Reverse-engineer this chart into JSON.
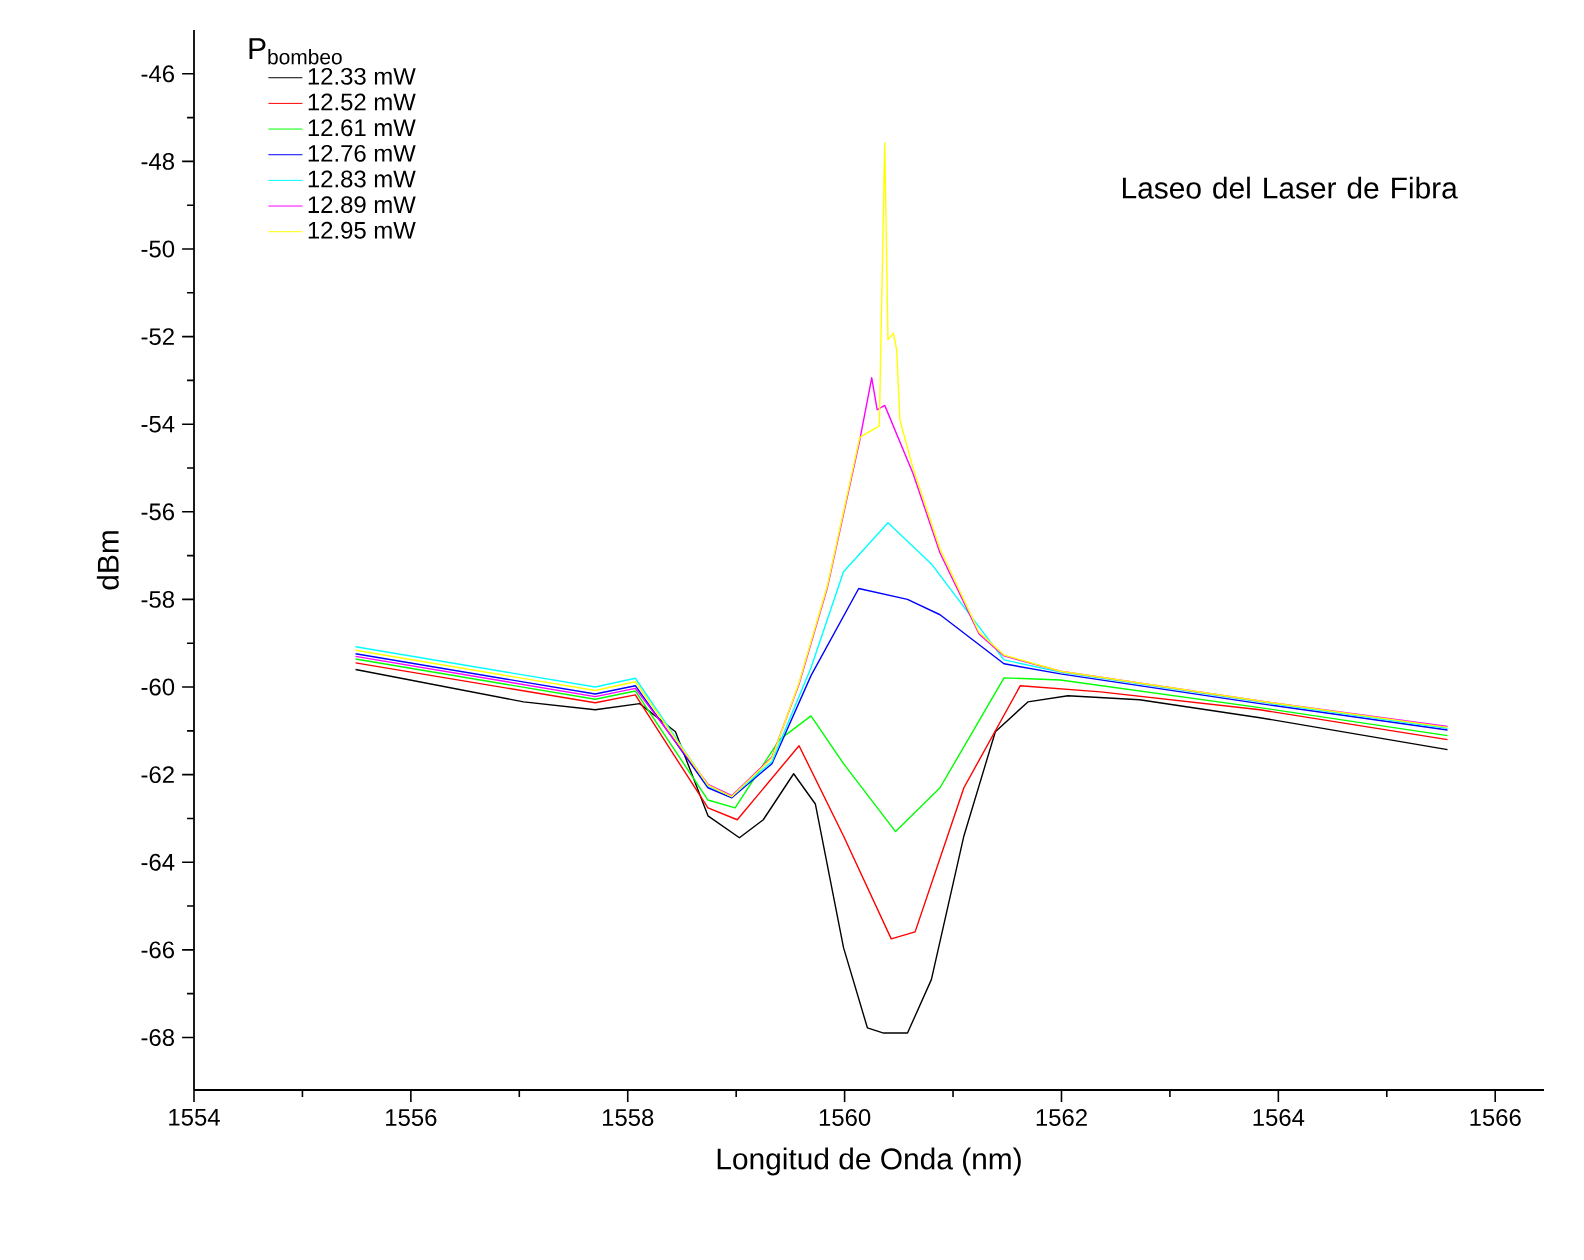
{
  "chart_data": {
    "type": "line",
    "title": "Laseo del Laser de Fibra",
    "xlabel": "Longitud de Onda (nm)",
    "ylabel": "dBm",
    "legend_title": "P$_{bombeo}$",
    "legend": "top left",
    "marker": "none",
    "line_style": "solid",
    "grid": false,
    "xlim": [
      1554,
      1566.45
    ],
    "xticks": [
      1554,
      1556,
      1558,
      1560,
      1562,
      1564,
      1566
    ],
    "ylim": [
      -69.2,
      -45
    ],
    "yticks": [
      -68,
      -66,
      -64,
      -62,
      -60,
      -58,
      -56,
      -54,
      -52,
      -50,
      -48,
      -46
    ],
    "series": [
      {
        "name": "12.33 mW",
        "color": "#000000",
        "x": [
          1555.49,
          1557.04,
          1557.7,
          1558.11,
          1558.44,
          1558.74,
          1559.03,
          1559.25,
          1559.53,
          1559.73,
          1559.99,
          1560.21,
          1560.36,
          1560.58,
          1560.8,
          1561.1,
          1561.39,
          1561.69,
          1562.06,
          1562.72,
          1563.83,
          1565.56
        ],
        "values": [
          -59.6,
          -60.34,
          -60.52,
          -60.38,
          -61.02,
          -62.94,
          -63.44,
          -63.03,
          -61.98,
          -62.67,
          -65.95,
          -67.78,
          -67.9,
          -67.9,
          -66.68,
          -63.4,
          -61.02,
          -60.34,
          -60.2,
          -60.29,
          -60.7,
          -61.43
        ]
      },
      {
        "name": "12.52 mW",
        "color": "#ff0000",
        "x": [
          1555.49,
          1557.7,
          1558.07,
          1558.74,
          1559.01,
          1559.58,
          1559.99,
          1560.43,
          1560.65,
          1561.1,
          1561.62,
          1562.36,
          1563.83,
          1565.56
        ],
        "values": [
          -59.45,
          -60.36,
          -60.18,
          -62.76,
          -63.03,
          -61.34,
          -63.4,
          -65.75,
          -65.59,
          -62.3,
          -59.97,
          -60.11,
          -60.52,
          -61.2
        ]
      },
      {
        "name": "12.61 mW",
        "color": "#00ff00",
        "x": [
          1555.49,
          1557.7,
          1558.07,
          1558.74,
          1558.99,
          1559.4,
          1559.69,
          1559.99,
          1560.47,
          1560.88,
          1561.47,
          1561.99,
          1563.83,
          1565.56
        ],
        "values": [
          -59.36,
          -60.28,
          -60.09,
          -62.58,
          -62.76,
          -61.2,
          -60.66,
          -61.75,
          -63.3,
          -62.3,
          -59.79,
          -59.84,
          -60.47,
          -61.11
        ]
      },
      {
        "name": "12.76 mW",
        "color": "#0000ff",
        "x": [
          1555.49,
          1557.7,
          1558.07,
          1558.74,
          1558.96,
          1559.33,
          1559.69,
          1560.13,
          1560.58,
          1560.88,
          1561.47,
          1561.99,
          1563.83,
          1565.56
        ],
        "values": [
          -59.24,
          -60.16,
          -59.97,
          -62.3,
          -62.53,
          -61.75,
          -59.74,
          -57.75,
          -58.0,
          -58.35,
          -59.47,
          -59.7,
          -60.38,
          -60.98
        ]
      },
      {
        "name": "12.83 mW",
        "color": "#00ffff",
        "x": [
          1555.49,
          1557.7,
          1558.07,
          1558.74,
          1558.96,
          1559.33,
          1559.69,
          1559.99,
          1560.4,
          1560.8,
          1561.47,
          1561.99,
          1563.83,
          1565.56
        ],
        "values": [
          -59.08,
          -60.0,
          -59.8,
          -62.25,
          -62.5,
          -61.7,
          -59.56,
          -57.37,
          -56.25,
          -57.19,
          -59.38,
          -59.66,
          -60.34,
          -60.94
        ]
      },
      {
        "name": "12.89 mW",
        "color": "#ff00ff",
        "x": [
          1555.49,
          1557.7,
          1558.07,
          1558.74,
          1558.96,
          1559.33,
          1559.58,
          1559.84,
          1560.14,
          1560.25,
          1560.3,
          1560.37,
          1560.63,
          1560.88,
          1561.24,
          1561.47,
          1561.99,
          1563.83,
          1565.56
        ],
        "values": [
          -59.3,
          -60.22,
          -60.03,
          -62.22,
          -62.48,
          -61.6,
          -59.93,
          -57.74,
          -54.36,
          -52.94,
          -53.67,
          -53.57,
          -55.12,
          -56.94,
          -58.79,
          -59.29,
          -59.64,
          -60.32,
          -60.9
        ]
      },
      {
        "name": "12.95 mW",
        "color": "#ffff00",
        "x": [
          1555.49,
          1557.7,
          1558.07,
          1558.74,
          1558.96,
          1559.33,
          1559.58,
          1559.84,
          1560.14,
          1560.32,
          1560.37,
          1560.4,
          1560.45,
          1560.48,
          1560.51,
          1560.63,
          1560.88,
          1561.24,
          1561.47,
          1561.99,
          1563.83,
          1565.56
        ],
        "values": [
          -59.16,
          -60.08,
          -59.88,
          -62.24,
          -62.5,
          -61.62,
          -59.9,
          -57.7,
          -54.3,
          -54.04,
          -47.58,
          -52.07,
          -51.92,
          -52.3,
          -53.9,
          -55.0,
          -56.85,
          -58.75,
          -59.27,
          -59.64,
          -60.32,
          -60.92
        ]
      }
    ]
  }
}
